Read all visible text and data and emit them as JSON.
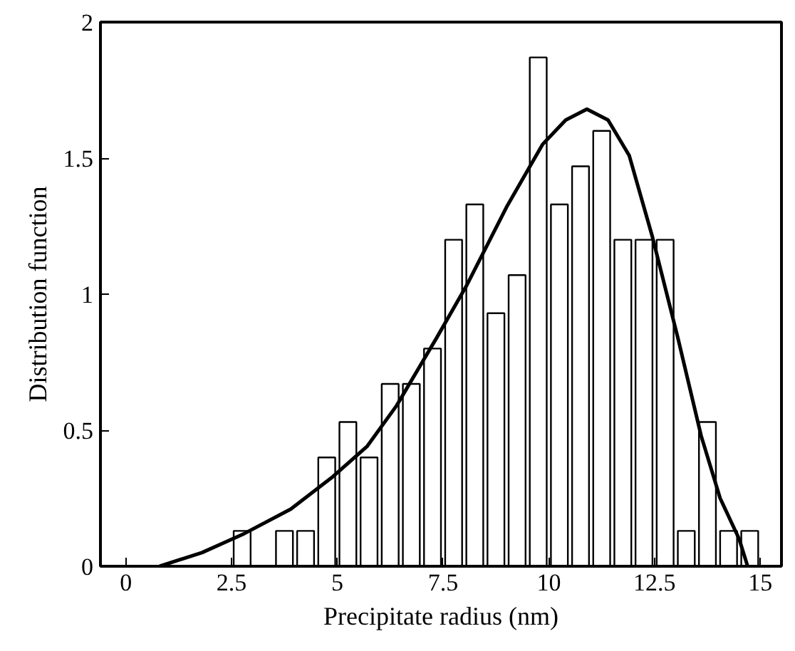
{
  "chart_data": {
    "type": "bar",
    "xlabel": "Precipitate radius (nm)",
    "ylabel": "Distribution function",
    "xlim": [
      -0.6,
      15.5
    ],
    "xticks": [
      0,
      2.5,
      5,
      7.5,
      10,
      12.5,
      15
    ],
    "ylim": [
      0,
      2
    ],
    "yticks": [
      0,
      0.5,
      1,
      1.5,
      2
    ],
    "grid": false,
    "series": [
      {
        "color": "#ffffff",
        "x": [
          2.75,
          3.75,
          4.25,
          4.75,
          5.25,
          5.75,
          6.25,
          6.75,
          7.25,
          7.75,
          8.25,
          8.75,
          9.25,
          9.75,
          10.25,
          10.75,
          11.25,
          11.75,
          12.25,
          12.75,
          13.25,
          13.75,
          14.25,
          14.75
        ],
        "values": [
          0.13,
          0.13,
          0.13,
          0.4,
          0.53,
          0.4,
          0.67,
          0.67,
          0.8,
          1.2,
          1.33,
          0.93,
          1.07,
          1.87,
          1.33,
          1.47,
          1.6,
          1.2,
          1.2,
          1.2,
          0.13,
          0.53,
          0.13,
          0.13
        ]
      },
      {
        "type": "line",
        "color": "#000000",
        "x": [
          0.8,
          1.8,
          2.8,
          3.9,
          4.9,
          5.7,
          6.4,
          7.35,
          8.05,
          9.0,
          9.85,
          10.4,
          10.9,
          11.4,
          11.9,
          12.45,
          13.05,
          13.6,
          14.05,
          14.5,
          14.7
        ],
        "values": [
          0,
          0.05,
          0.12,
          0.21,
          0.33,
          0.44,
          0.59,
          0.84,
          1.03,
          1.32,
          1.55,
          1.64,
          1.68,
          1.64,
          1.51,
          1.21,
          0.84,
          0.48,
          0.25,
          0.1,
          0
        ]
      }
    ]
  }
}
